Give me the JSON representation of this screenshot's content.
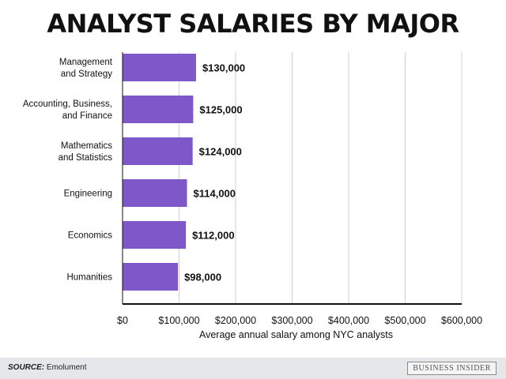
{
  "title": "ANALYST SALARIES BY MAJOR",
  "chart_data": {
    "type": "bar",
    "orientation": "horizontal",
    "categories": [
      [
        "Management",
        "and Strategy"
      ],
      [
        "Accounting, Business,",
        "and Finance"
      ],
      [
        "Mathematics",
        "and Statistics"
      ],
      [
        "Engineering"
      ],
      [
        "Economics"
      ],
      [
        "Humanities"
      ]
    ],
    "values": [
      130000,
      125000,
      124000,
      114000,
      112000,
      98000
    ],
    "value_labels": [
      "$130,000",
      "$125,000",
      "$124,000",
      "$114,000",
      "$112,000",
      "$98,000"
    ],
    "xticks": [
      0,
      100000,
      200000,
      300000,
      400000,
      500000,
      600000
    ],
    "xtick_labels": [
      "$0",
      "$100,000",
      "$200,000",
      "$300,000",
      "$400,000",
      "$500,000",
      "$600,000"
    ],
    "xlim": [
      0,
      600000
    ],
    "xlabel": "Average annual salary among NYC analysts",
    "bar_color": "#7e57c8",
    "grid": true
  },
  "footer": {
    "source_label": "SOURCE:",
    "source_text": " Emolument",
    "brand": "BUSINESS INSIDER"
  }
}
